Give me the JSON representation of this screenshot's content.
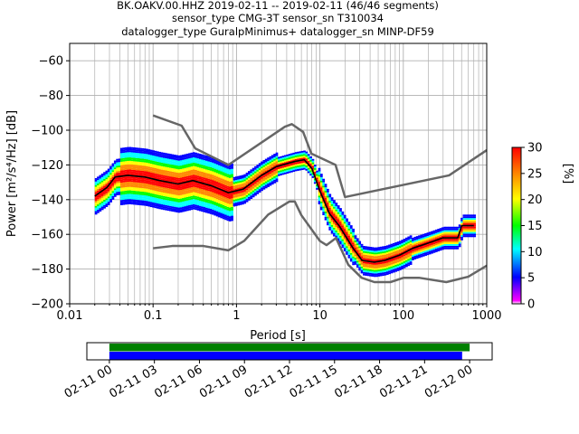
{
  "title_lines": [
    "BK.OAKV.00.HHZ   2019-02-11 -- 2019-02-11  (46/46 segments)",
    "sensor_type CMG-3T sensor_sn T310034",
    "datalogger_type GuralpMinimus+ datalogger_sn MINP-DF59"
  ],
  "chart_data": {
    "type": "heatmap",
    "xlabel": "Period [s]",
    "ylabel": "Power [m²/s⁴/Hz] [dB]",
    "x_scale": "log",
    "xlim": [
      0.01,
      1000
    ],
    "ylim": [
      -200,
      -50
    ],
    "grid": true,
    "x_ticks": [
      0.01,
      0.1,
      1,
      10,
      100,
      1000
    ],
    "x_tick_labels": [
      "0.01",
      "0.1",
      "1",
      "10",
      "100",
      "1000"
    ],
    "y_ticks": [
      -60,
      -80,
      -100,
      -120,
      -140,
      -160,
      -180,
      -200
    ],
    "colorbar": {
      "label": "[%]",
      "range": [
        0,
        30
      ],
      "ticks": [
        0,
        5,
        10,
        15,
        20,
        25,
        30
      ],
      "colors": [
        "#ffffff",
        "#ff00ff",
        "#0000ff",
        "#00ffff",
        "#00ff00",
        "#ffff00",
        "#ff8800",
        "#ff0000"
      ]
    },
    "noise_model_high": {
      "color": "#666666",
      "x": [
        0.1,
        0.22,
        0.32,
        0.8,
        3.8,
        4.6,
        6.3,
        7.9,
        15.4,
        20,
        354,
        1000
      ],
      "y": [
        -91.5,
        -97.4,
        -110.5,
        -120,
        -98,
        -96.5,
        -101,
        -113.5,
        -120,
        -138.5,
        -126,
        -111.5
      ]
    },
    "noise_model_low": {
      "color": "#666666",
      "x": [
        0.1,
        0.17,
        0.4,
        0.8,
        1.24,
        2.4,
        4.3,
        5,
        6,
        10,
        12,
        15.6,
        21.9,
        31.6,
        45,
        70,
        101,
        154,
        328,
        600,
        1000
      ],
      "y": [
        -168,
        -166.7,
        -166.7,
        -169.2,
        -163.7,
        -148.6,
        -141.1,
        -141.1,
        -149,
        -163.8,
        -166.2,
        -162.1,
        -177.5,
        -185,
        -187.5,
        -187.5,
        -185,
        -185,
        -187.5,
        -184.4,
        -178
      ]
    },
    "mean_curve": {
      "color": "#000000",
      "x": [
        0.02,
        0.028,
        0.035,
        0.05,
        0.08,
        0.12,
        0.2,
        0.3,
        0.5,
        0.8,
        1.2,
        2,
        3,
        5,
        6.5,
        8,
        10,
        13,
        17,
        25,
        32,
        45,
        60,
        90,
        130,
        200,
        300,
        450,
        500,
        700
      ],
      "y": [
        -138,
        -133,
        -127,
        -126,
        -127,
        -129,
        -131,
        -129,
        -132,
        -136,
        -134,
        -126,
        -121,
        -118,
        -117,
        -122,
        -135,
        -148,
        -155,
        -168,
        -175,
        -176,
        -175,
        -172,
        -168,
        -165,
        -162,
        -162,
        -155,
        -155
      ]
    },
    "time_axis": {
      "tick_labels": [
        "02-11 00",
        "02-11 03",
        "02-11 06",
        "02-11 09",
        "02-11 12",
        "02-11 15",
        "02-11 18",
        "02-11 21",
        "02-12 00"
      ],
      "range_hours": [
        -1.5,
        25.5
      ],
      "bars": [
        {
          "color": "#008000",
          "start_hour": 0,
          "end_hour": 24.0
        },
        {
          "color": "#0000ff",
          "start_hour": 0,
          "end_hour": 23.5
        }
      ]
    }
  }
}
